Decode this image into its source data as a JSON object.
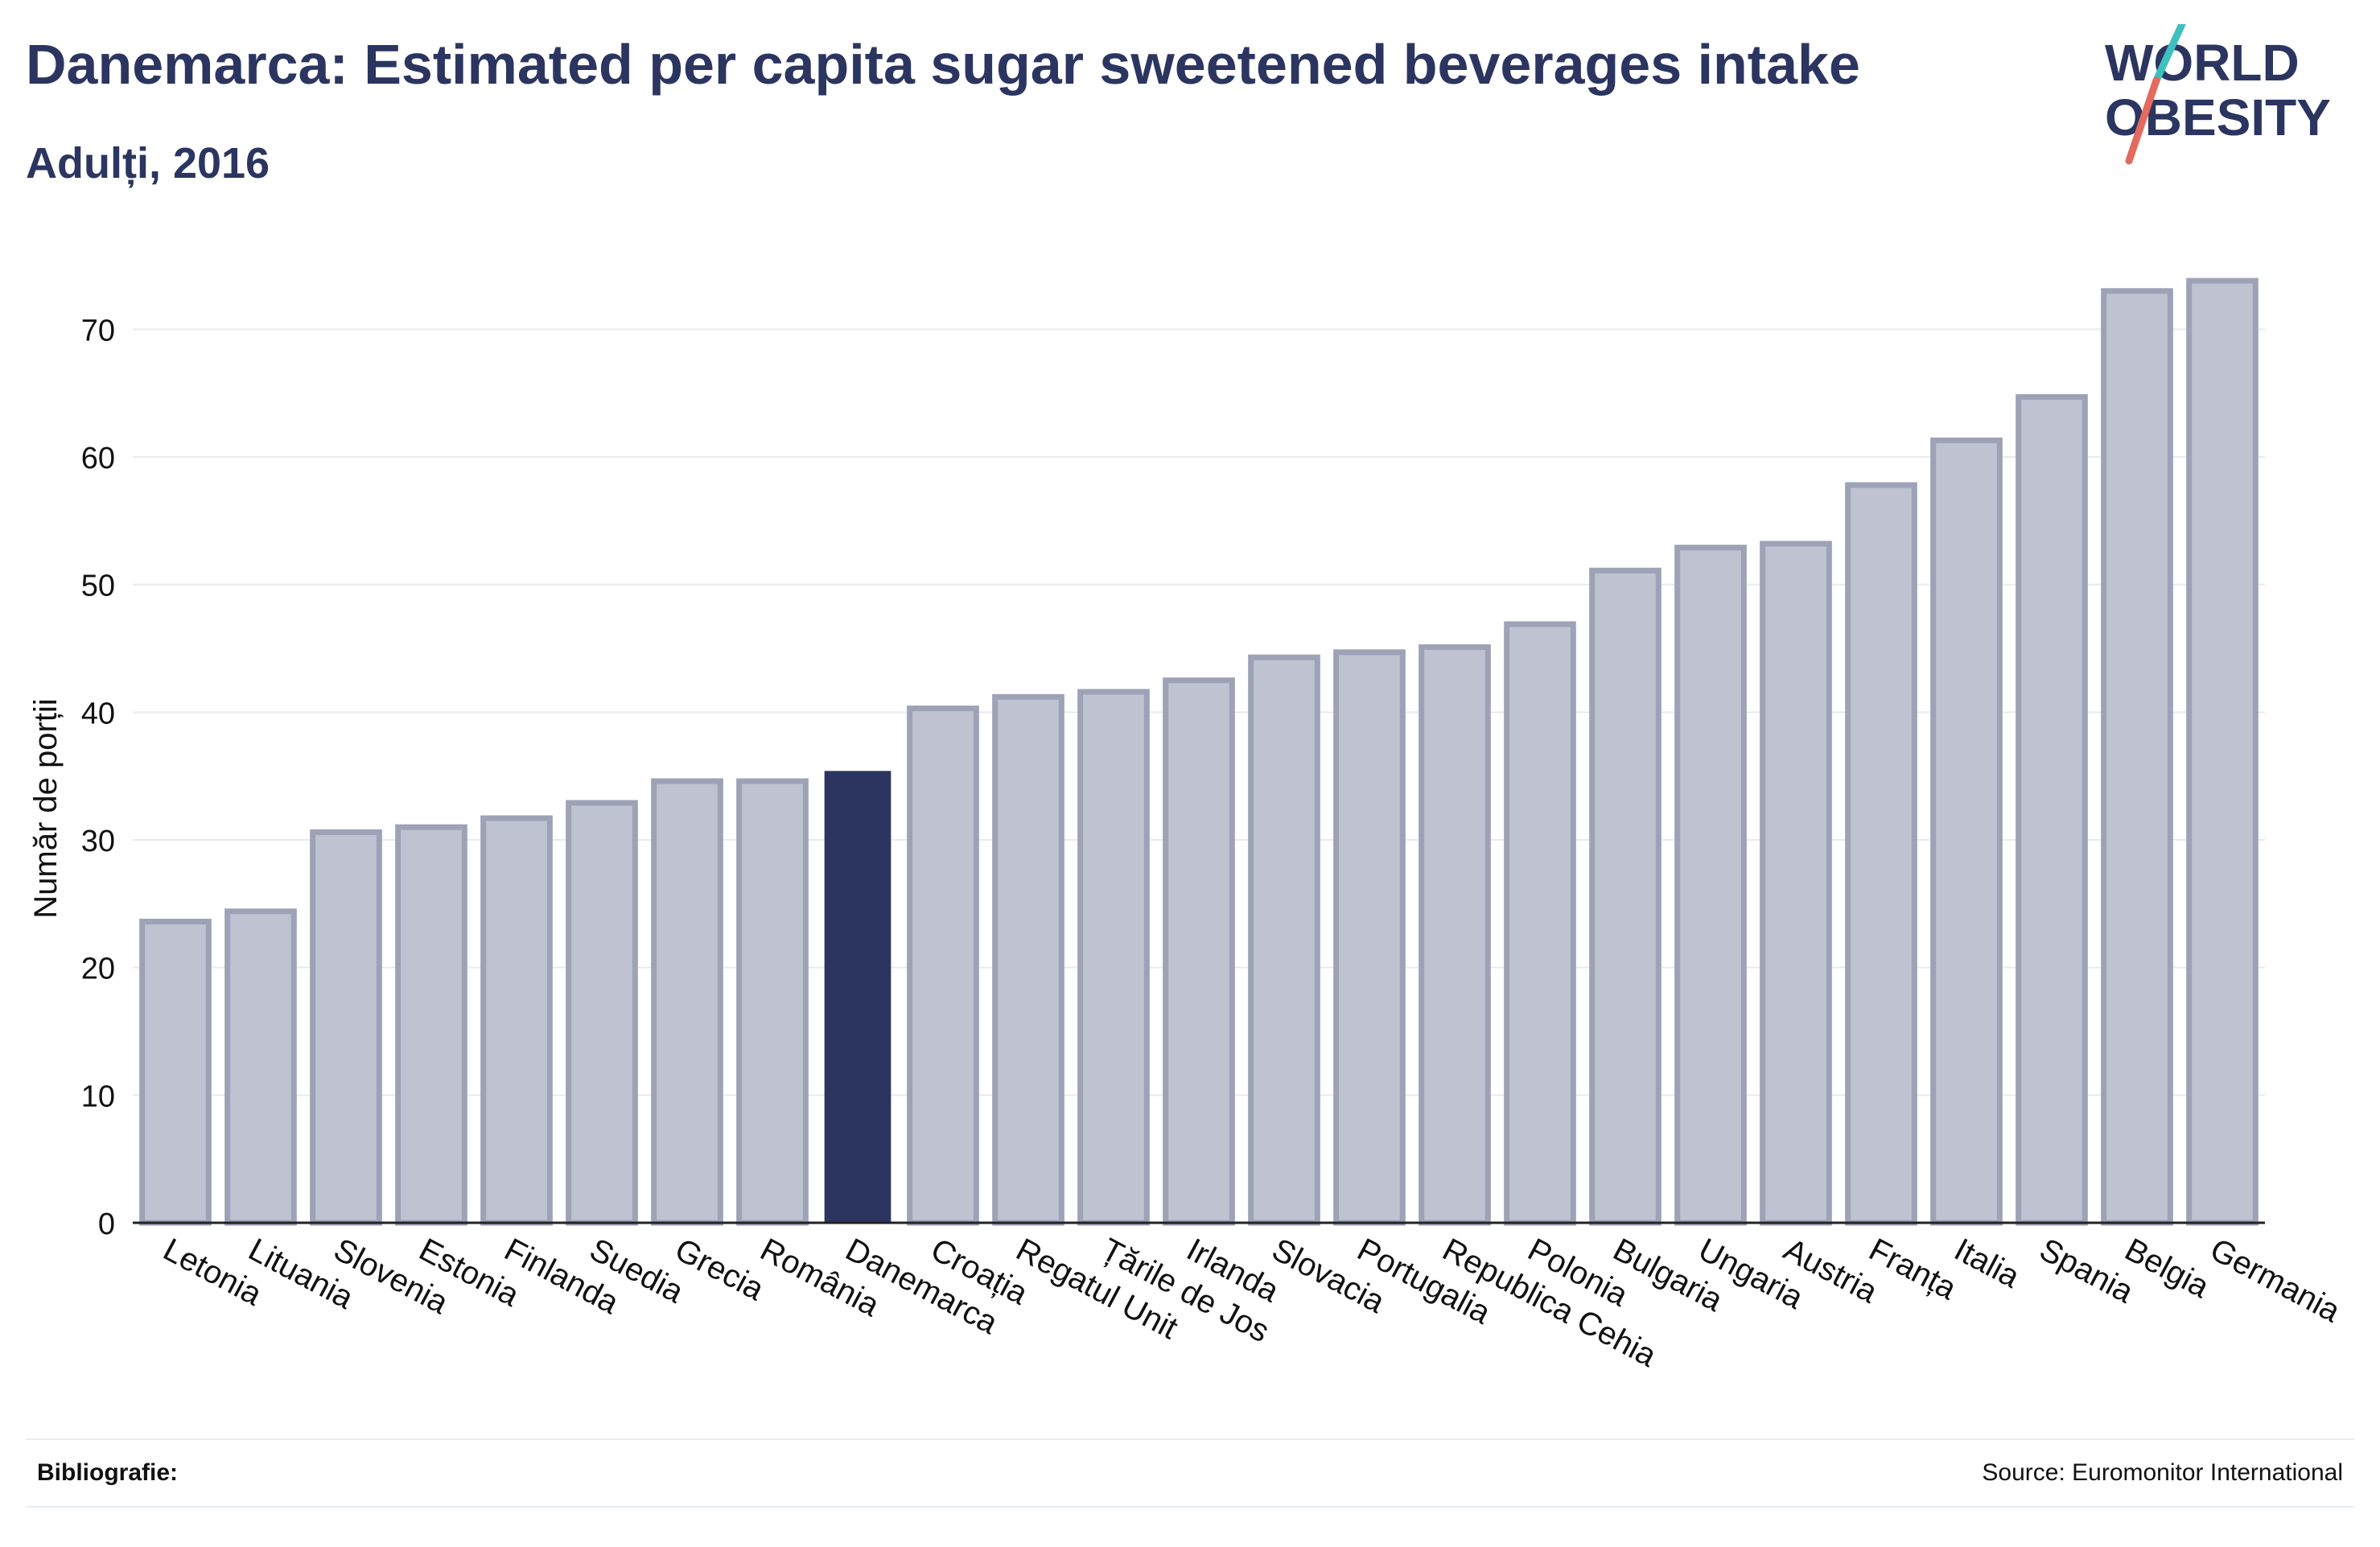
{
  "title": "Danemarca: Estimated per capita sugar sweetened beverages intake",
  "subtitle": "Adulți, 2016",
  "logo": {
    "line1": "WORLD",
    "line2": "OBESITY"
  },
  "footer": {
    "bibliography_label": "Bibliografie:",
    "source": "Source: Euromonitor International"
  },
  "colors": {
    "bar": "#bfc2d0",
    "bar_border": "#9da2b7",
    "highlight": "#2b3560",
    "text": "#2b3560",
    "grid": "#e9eaee",
    "logo_teal": "#3fbfbf",
    "logo_red": "#e36a5c"
  },
  "chart_data": {
    "type": "bar",
    "title": "Danemarca: Estimated per capita sugar sweetened beverages intake",
    "subtitle": "Adulți, 2016",
    "xlabel": "",
    "ylabel": "Număr de porții",
    "ylim": [
      0,
      75
    ],
    "yticks": [
      0,
      10,
      20,
      30,
      40,
      50,
      60,
      70
    ],
    "grid": true,
    "highlight": "Danemarca",
    "categories": [
      "Letonia",
      "Lituania",
      "Slovenia",
      "Estonia",
      "Finlanda",
      "Suedia",
      "Grecia",
      "România",
      "Danemarca",
      "Croația",
      "Regatul Unit",
      "Țările de Jos",
      "Irlanda",
      "Slovacia",
      "Portugalia",
      "Republica Cehia",
      "Polonia",
      "Bulgaria",
      "Ungaria",
      "Austria",
      "Franța",
      "Italia",
      "Spania",
      "Belgia",
      "Germania"
    ],
    "values": [
      23.6,
      24.4,
      30.6,
      31.0,
      31.7,
      32.9,
      34.6,
      34.6,
      35.4,
      40.3,
      41.2,
      41.6,
      42.5,
      44.3,
      44.7,
      45.1,
      46.9,
      51.1,
      52.9,
      53.2,
      57.8,
      61.3,
      64.7,
      73.0,
      73.8
    ]
  }
}
